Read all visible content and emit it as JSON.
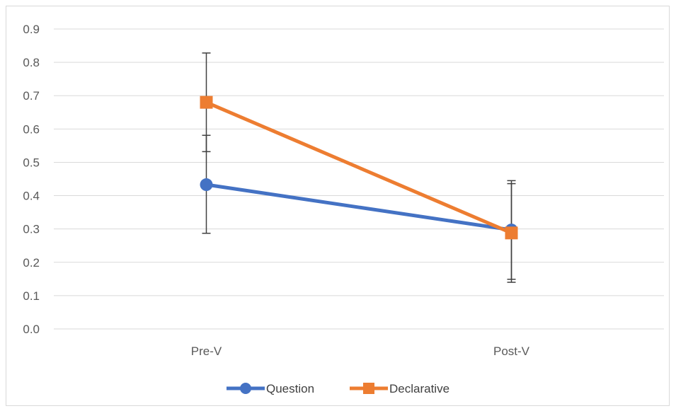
{
  "chart_data": {
    "type": "line",
    "categories": [
      "Pre-V",
      "Post-V"
    ],
    "ylim": [
      0,
      0.9
    ],
    "y_ticks": [
      "0.0",
      "0.1",
      "0.2",
      "0.3",
      "0.4",
      "0.5",
      "0.6",
      "0.7",
      "0.8",
      "0.9"
    ],
    "grid": true,
    "legend_position": "bottom",
    "series": [
      {
        "name": "Question",
        "color": "#4472C4",
        "marker": "circle",
        "values": [
          0.433,
          0.297
        ],
        "error_low": [
          0.287,
          0.149
        ],
        "error_high": [
          0.581,
          0.445
        ]
      },
      {
        "name": "Declarative",
        "color": "#ED7D31",
        "marker": "square",
        "values": [
          0.68,
          0.288
        ],
        "error_low": [
          0.532,
          0.14
        ],
        "error_high": [
          0.828,
          0.436
        ]
      }
    ]
  }
}
